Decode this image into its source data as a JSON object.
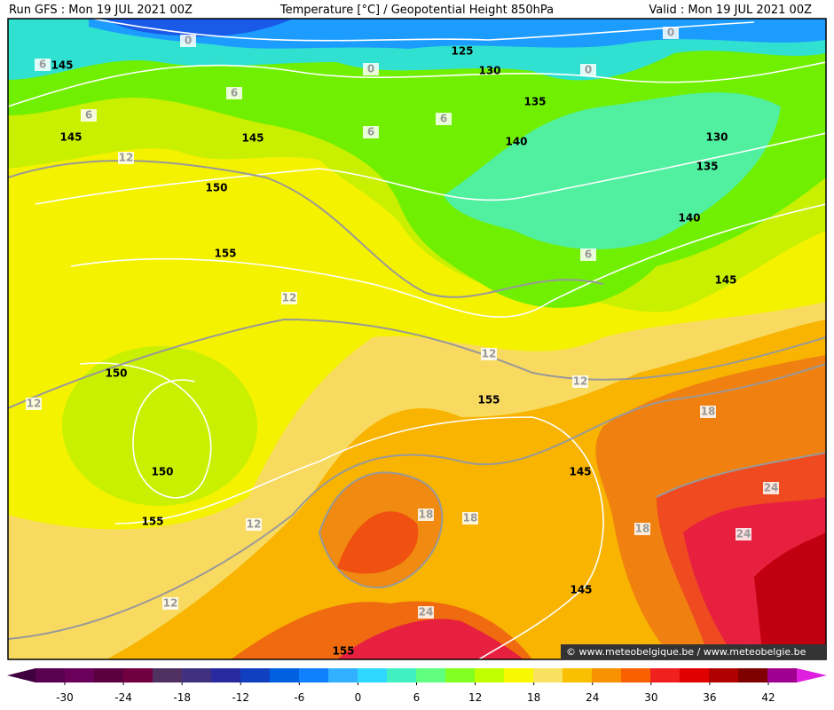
{
  "header": {
    "left": "Run GFS : Mon 19 JUL 2021 00Z",
    "center": "Temperature [°C] / Geopotential Height 850hPa",
    "right": "Valid : Mon 19 JUL 2021 00Z"
  },
  "height_labels": [
    "145",
    "125",
    "130",
    "135",
    "145",
    "145",
    "140",
    "130",
    "135",
    "150",
    "140",
    "155",
    "145",
    "150",
    "155",
    "150",
    "145",
    "155",
    "145",
    "155"
  ],
  "temperature_labels": [
    "0",
    "6",
    "0",
    "0",
    "0",
    "6",
    "6",
    "6",
    "6",
    "12",
    "12",
    "6",
    "12",
    "12",
    "12",
    "18",
    "24",
    "24",
    "18",
    "18",
    "18",
    "12",
    "12",
    "24"
  ],
  "colorbar": {
    "ticks": [
      -30,
      -24,
      -18,
      -12,
      -6,
      0,
      6,
      12,
      18,
      24,
      30,
      36,
      42
    ]
  },
  "credit": "© www.meteobelgique.be / www.meteobelgie.be"
}
